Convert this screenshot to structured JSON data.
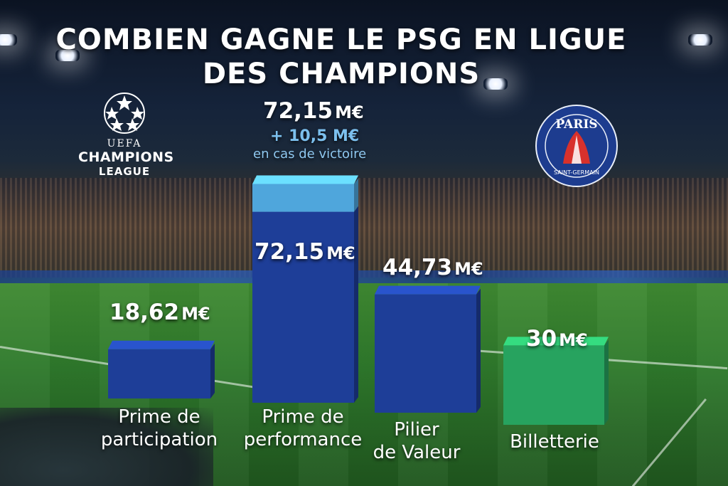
{
  "title": {
    "line1": "COMBIEN GAGNE LE PSG EN LIGUE",
    "line2": "DES CHAMPIONS"
  },
  "logos": {
    "ucl": {
      "line1": "UEFA",
      "line2": "CHAMPIONS",
      "line3": "LEAGUE"
    },
    "psg": {
      "top": "PARIS",
      "bottom": "SAINT-GERMAIN"
    }
  },
  "chart_data": {
    "type": "bar",
    "categories": [
      "Prime de participation",
      "Prime de performance",
      "Pilier de Valeur",
      "Billetterie"
    ],
    "category_lines": [
      [
        "Prime de",
        "participation"
      ],
      [
        "Prime de",
        "performance"
      ],
      [
        "Pilier",
        "de Valeur"
      ],
      [
        "Billetterie"
      ]
    ],
    "values": [
      18.62,
      72.15,
      44.73,
      30
    ],
    "value_labels": [
      {
        "num": "18,62",
        "unit": "M€"
      },
      {
        "num": "72,15",
        "unit": "M€"
      },
      {
        "num": "44,73",
        "unit": "M€"
      },
      {
        "num": "30",
        "unit": "M€"
      }
    ],
    "stacked_extra": {
      "category": "Prime de performance",
      "value": 10.5,
      "label": "+ 10,5 M€",
      "note": "en cas de victoire"
    },
    "top_total_label": {
      "num": "72,15",
      "unit": "M€"
    },
    "colors": {
      "main": "#1e3e98",
      "extra": "#4fa6dc",
      "billetterie": "#27a35f"
    },
    "xlabel": "",
    "ylabel": ""
  }
}
